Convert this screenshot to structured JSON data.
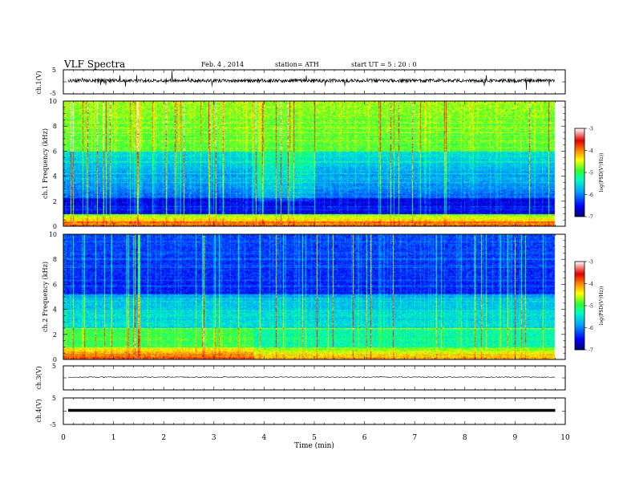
{
  "header": {
    "title": "VLF Spectra",
    "date": "Feb. 4 , 2014",
    "station": "station= ATH",
    "start_ut": "start UT = 5 : 20 : 0"
  },
  "chart_data": [
    {
      "type": "line",
      "name": "ch1-waveform",
      "ylabel": "ch.1(V)",
      "ylim": [
        -5,
        5
      ],
      "yticks": [
        "5",
        "-5"
      ],
      "xlim": [
        0,
        10
      ]
    },
    {
      "type": "heatmap",
      "name": "ch1-spectrogram",
      "ylabel": "ch.1 Frequency (kHz)",
      "ylim": [
        0,
        10
      ],
      "yticks": [
        "0",
        "2",
        "4",
        "6",
        "8",
        "10"
      ],
      "xlim": [
        0,
        10
      ],
      "data_end_x": 9.8,
      "colorbar": {
        "label": "log(PSD(V²/Hz))",
        "range": [
          -7,
          -3
        ],
        "ticks": [
          "-3",
          "-4",
          "-5",
          "-6",
          "-7"
        ]
      }
    },
    {
      "type": "heatmap",
      "name": "ch2-spectrogram",
      "ylabel": "ch.2 Frequency (kHz)",
      "ylim": [
        0,
        10
      ],
      "yticks": [
        "0",
        "2",
        "4",
        "6",
        "8",
        "10"
      ],
      "xlim": [
        0,
        10
      ],
      "data_end_x": 9.8,
      "colorbar": {
        "label": "log(PSD(V²/Hz))",
        "range": [
          -7,
          -3
        ],
        "ticks": [
          "-3",
          "-4",
          "-5",
          "-6",
          "-7"
        ]
      }
    },
    {
      "type": "line",
      "name": "ch3-waveform",
      "ylabel": "ch.3(V)",
      "ylim": [
        -5,
        5
      ],
      "yticks": [
        "5",
        "-5"
      ],
      "xlim": [
        0,
        10
      ]
    },
    {
      "type": "line",
      "name": "ch4-waveform",
      "ylabel": "ch.4(V)",
      "ylim": [
        -5,
        5
      ],
      "yticks": [
        "5",
        "-5"
      ],
      "xlim": [
        0,
        10
      ],
      "xlabel": "Time (min)",
      "xticks": [
        "0",
        "1",
        "2",
        "3",
        "4",
        "5",
        "6",
        "7",
        "8",
        "9",
        "10"
      ]
    }
  ],
  "colors": {
    "colormap": [
      "#000070",
      "#0000ff",
      "#00a0ff",
      "#00ffc0",
      "#30ff30",
      "#ffff00",
      "#ff9000",
      "#e00000",
      "#ffffff"
    ]
  }
}
